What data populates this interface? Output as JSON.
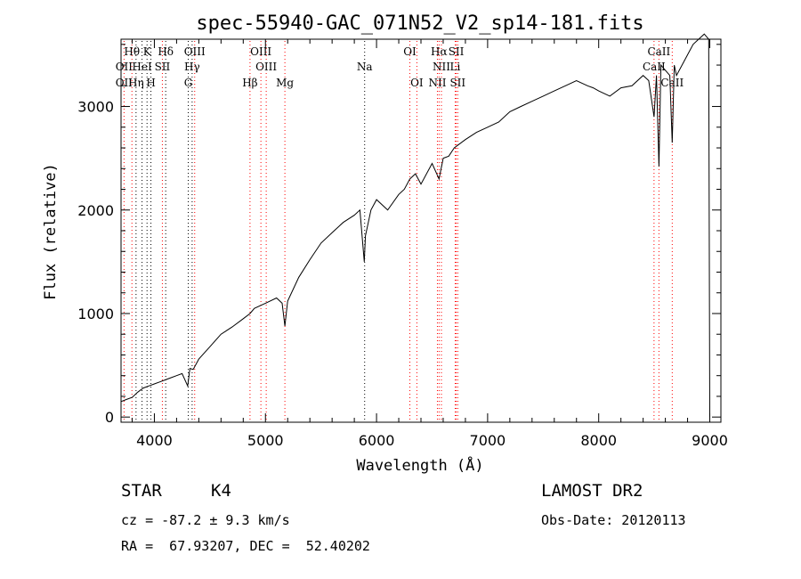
{
  "chart_data": {
    "type": "line",
    "title": "spec-55940-GAC_071N52_V2_sp14-181.fits",
    "xlabel": "Wavelength (Å)",
    "ylabel": "Flux (relative)",
    "xlim": [
      3700,
      9100
    ],
    "ylim": [
      -50,
      3650
    ],
    "x_ticks": [
      4000,
      5000,
      6000,
      7000,
      8000,
      9000
    ],
    "y_ticks": [
      0,
      1000,
      2000,
      3000
    ],
    "grid": false,
    "series": [
      {
        "name": "spectrum",
        "x": [
          3700,
          3750,
          3800,
          3850,
          3900,
          3950,
          4000,
          4050,
          4100,
          4150,
          4200,
          4250,
          4300,
          4320,
          4350,
          4400,
          4500,
          4600,
          4700,
          4800,
          4861,
          4900,
          5000,
          5100,
          5150,
          5175,
          5200,
          5300,
          5400,
          5500,
          5600,
          5700,
          5800,
          5850,
          5890,
          5900,
          5950,
          6000,
          6050,
          6100,
          6200,
          6250,
          6300,
          6350,
          6400,
          6500,
          6563,
          6600,
          6650,
          6700,
          6800,
          6900,
          7000,
          7100,
          7200,
          7300,
          7400,
          7500,
          7600,
          7700,
          7800,
          7900,
          7950,
          8000,
          8100,
          8200,
          8300,
          8400,
          8450,
          8498,
          8520,
          8542,
          8560,
          8600,
          8640,
          8662,
          8680,
          8700,
          8800,
          8850,
          8900,
          8950,
          8990,
          9000
        ],
        "y": [
          150,
          170,
          190,
          240,
          280,
          300,
          320,
          340,
          360,
          380,
          400,
          420,
          300,
          470,
          460,
          560,
          680,
          800,
          870,
          950,
          1000,
          1050,
          1100,
          1150,
          1100,
          880,
          1120,
          1350,
          1520,
          1680,
          1780,
          1880,
          1950,
          2000,
          1500,
          1750,
          2000,
          2100,
          2050,
          2000,
          2150,
          2200,
          2300,
          2350,
          2250,
          2450,
          2300,
          2500,
          2520,
          2600,
          2680,
          2750,
          2800,
          2850,
          2950,
          3000,
          3050,
          3100,
          3150,
          3200,
          3250,
          3200,
          3180,
          3150,
          3100,
          3180,
          3200,
          3300,
          3250,
          2900,
          3300,
          2420,
          3400,
          3350,
          3300,
          2650,
          3400,
          3300,
          3500,
          3600,
          3650,
          3700,
          3650,
          0
        ]
      }
    ],
    "spectral_lines": [
      {
        "label": "Hθ",
        "wavelength": 3798,
        "row": 1
      },
      {
        "label": "K",
        "wavelength": 3934,
        "row": 1
      },
      {
        "label": "Hδ",
        "wavelength": 4102,
        "row": 1
      },
      {
        "label": "OIII",
        "wavelength": 4363,
        "row": 1
      },
      {
        "label": "OIII",
        "wavelength": 4959,
        "row": 1
      },
      {
        "label": "OI",
        "wavelength": 6300,
        "row": 1
      },
      {
        "label": "Hα",
        "wavelength": 6563,
        "row": 1
      },
      {
        "label": "SII",
        "wavelength": 6717,
        "row": 1
      },
      {
        "label": "CaII",
        "wavelength": 8542,
        "row": 1
      },
      {
        "label": "OII",
        "wavelength": 3727,
        "row": 2
      },
      {
        "label": "HeI",
        "wavelength": 3889,
        "row": 2
      },
      {
        "label": "SII",
        "wavelength": 4072,
        "row": 2
      },
      {
        "label": "Hγ",
        "wavelength": 4340,
        "row": 2
      },
      {
        "label": "OIII",
        "wavelength": 5007,
        "row": 2
      },
      {
        "label": "Na",
        "wavelength": 5893,
        "row": 2
      },
      {
        "label": "NII",
        "wavelength": 6584,
        "row": 2
      },
      {
        "label": "Li",
        "wavelength": 6708,
        "row": 2
      },
      {
        "label": "CaII",
        "wavelength": 8498,
        "row": 2
      },
      {
        "label": "OII",
        "wavelength": 3727,
        "row": 3
      },
      {
        "label": "Hη",
        "wavelength": 3835,
        "row": 3
      },
      {
        "label": "H",
        "wavelength": 3969,
        "row": 3
      },
      {
        "label": "G",
        "wavelength": 4305,
        "row": 3
      },
      {
        "label": "Hβ",
        "wavelength": 4861,
        "row": 3
      },
      {
        "label": "Mg",
        "wavelength": 5175,
        "row": 3
      },
      {
        "label": "OI",
        "wavelength": 6363,
        "row": 3
      },
      {
        "label": "NII",
        "wavelength": 6548,
        "row": 3
      },
      {
        "label": "SII",
        "wavelength": 6731,
        "row": 3
      },
      {
        "label": "CaII",
        "wavelength": 8662,
        "row": 3
      }
    ],
    "colors": {
      "spectrum": "#000000",
      "emission_line": "#ff0000",
      "absorption_line": "#000000"
    }
  },
  "info": {
    "class_label": "STAR",
    "subclass": "K4",
    "survey": "LAMOST DR2",
    "redshift": "cz = -87.2 ± 9.3 km/s",
    "obs_date": "Obs-Date: 20120113",
    "coords": "RA =  67.93207, DEC =  52.40202"
  }
}
